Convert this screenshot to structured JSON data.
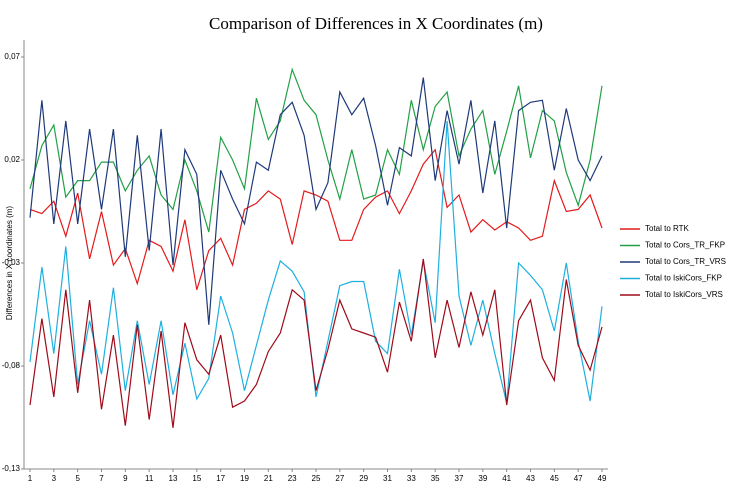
{
  "chart_data": {
    "type": "line",
    "title": "Comparison of Differences in X Coordinates (m)",
    "y_label": "Differences in X coordinates (m)",
    "x": [
      1,
      2,
      3,
      4,
      5,
      6,
      7,
      8,
      9,
      10,
      11,
      12,
      13,
      14,
      15,
      16,
      17,
      18,
      19,
      20,
      21,
      22,
      23,
      24,
      25,
      26,
      27,
      28,
      29,
      30,
      31,
      32,
      33,
      34,
      35,
      36,
      37,
      38,
      39,
      40,
      41,
      42,
      43,
      44,
      45,
      46,
      47,
      48,
      49
    ],
    "xlim": [
      1,
      49
    ],
    "xticks": [
      1,
      3,
      5,
      7,
      9,
      11,
      13,
      15,
      17,
      19,
      21,
      23,
      25,
      27,
      29,
      31,
      33,
      35,
      37,
      39,
      41,
      43,
      45,
      47,
      49
    ],
    "ylim": [
      -0.13,
      0.07
    ],
    "yticks": [
      {
        "value": -0.13,
        "label": "-0,13"
      },
      {
        "value": -0.08,
        "label": "-0,08"
      },
      {
        "value": -0.03,
        "label": "-0,03"
      },
      {
        "value": 0.02,
        "label": "0,02"
      },
      {
        "value": 0.07,
        "label": "0,07"
      }
    ],
    "legend": "right",
    "series": [
      {
        "name": "Total to RTK",
        "color": "#e31a1c",
        "values": [
          -0.004,
          -0.006,
          0.0,
          -0.017,
          0.004,
          -0.028,
          -0.005,
          -0.031,
          -0.023,
          -0.04,
          -0.019,
          -0.022,
          -0.034,
          -0.009,
          -0.043,
          -0.024,
          -0.018,
          -0.031,
          -0.004,
          -0.001,
          0.005,
          0.001,
          -0.021,
          0.005,
          0.003,
          0.0,
          -0.019,
          -0.019,
          -0.004,
          0.002,
          0.005,
          -0.006,
          0.005,
          0.018,
          0.025,
          -0.003,
          0.003,
          -0.015,
          -0.009,
          -0.014,
          -0.01,
          -0.013,
          -0.019,
          -0.017,
          0.01,
          -0.005,
          -0.004,
          0.003,
          -0.013
        ]
      },
      {
        "name": "Total to Cors_TR_FKP",
        "color": "#22a046",
        "values": [
          0.006,
          0.027,
          0.037,
          0.002,
          0.01,
          0.01,
          0.019,
          0.019,
          0.005,
          0.015,
          0.022,
          0.003,
          -0.004,
          0.02,
          0.005,
          -0.015,
          0.031,
          0.02,
          0.006,
          0.05,
          0.03,
          0.039,
          0.064,
          0.049,
          0.042,
          0.02,
          0.001,
          0.025,
          0.001,
          0.003,
          0.025,
          0.013,
          0.049,
          0.025,
          0.046,
          0.053,
          0.022,
          0.035,
          0.044,
          0.013,
          0.034,
          0.056,
          0.021,
          0.044,
          0.039,
          0.014,
          -0.002,
          0.02,
          0.056
        ]
      },
      {
        "name": "Total to Cors_TR_VRS",
        "color": "#1f3a7a",
        "values": [
          -0.008,
          0.049,
          -0.011,
          0.039,
          -0.011,
          0.035,
          -0.004,
          0.035,
          -0.027,
          0.032,
          -0.024,
          0.035,
          -0.031,
          0.025,
          0.013,
          -0.06,
          0.015,
          0.001,
          -0.011,
          0.019,
          0.015,
          0.042,
          0.048,
          0.032,
          -0.004,
          0.009,
          0.053,
          0.042,
          0.05,
          0.027,
          -0.002,
          0.026,
          0.022,
          0.06,
          0.01,
          0.044,
          0.018,
          0.049,
          0.004,
          0.039,
          -0.013,
          0.044,
          0.048,
          0.049,
          0.015,
          0.045,
          0.02,
          0.01,
          0.022
        ]
      },
      {
        "name": "Total to IskiCors_FKP",
        "color": "#1eb0e0",
        "values": [
          -0.078,
          -0.032,
          -0.074,
          -0.022,
          -0.089,
          -0.058,
          -0.084,
          -0.042,
          -0.092,
          -0.058,
          -0.089,
          -0.058,
          -0.094,
          -0.069,
          -0.096,
          -0.086,
          -0.046,
          -0.064,
          -0.092,
          -0.07,
          -0.048,
          -0.029,
          -0.034,
          -0.044,
          -0.095,
          -0.068,
          -0.041,
          -0.039,
          -0.039,
          -0.068,
          -0.074,
          -0.033,
          -0.065,
          -0.029,
          -0.059,
          0.039,
          -0.046,
          -0.07,
          -0.048,
          -0.074,
          -0.098,
          -0.03,
          -0.036,
          -0.043,
          -0.063,
          -0.03,
          -0.068,
          -0.097,
          -0.051
        ]
      },
      {
        "name": "Total to IskiCors_VRS",
        "color": "#9e0b1a",
        "values": [
          -0.099,
          -0.057,
          -0.095,
          -0.043,
          -0.093,
          -0.048,
          -0.101,
          -0.065,
          -0.109,
          -0.06,
          -0.106,
          -0.063,
          -0.11,
          -0.059,
          -0.077,
          -0.084,
          -0.065,
          -0.1,
          -0.097,
          -0.089,
          -0.073,
          -0.064,
          -0.043,
          -0.048,
          -0.092,
          -0.072,
          -0.048,
          -0.062,
          -0.064,
          -0.066,
          -0.083,
          -0.049,
          -0.068,
          -0.028,
          -0.076,
          -0.048,
          -0.071,
          -0.044,
          -0.065,
          -0.043,
          -0.099,
          -0.058,
          -0.048,
          -0.076,
          -0.087,
          -0.038,
          -0.07,
          -0.082,
          -0.061
        ]
      }
    ]
  }
}
